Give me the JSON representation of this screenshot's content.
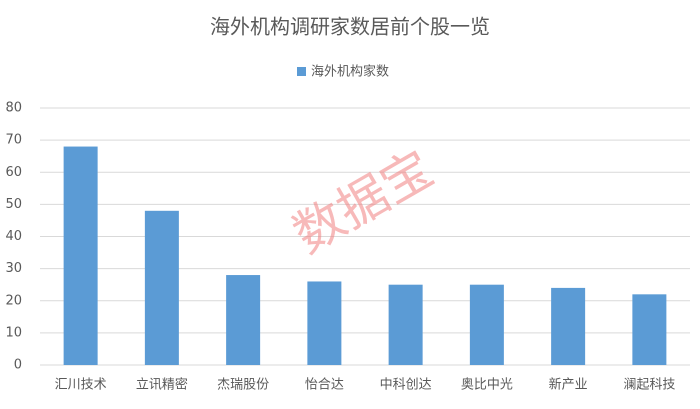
{
  "chart_data": {
    "type": "bar",
    "title": "海外机构调研家数居前个股一览",
    "watermark": "数据宝",
    "legend": "top",
    "series": [
      {
        "name": "海外机构家数",
        "color": "#5b9bd5",
        "values": [
          68,
          48,
          28,
          26,
          25,
          25,
          24,
          22
        ]
      }
    ],
    "categories": [
      "汇川技术",
      "立讯精密",
      "杰瑞股份",
      "怡合达",
      "中科创达",
      "奥比中光",
      "新产业",
      "澜起科技"
    ],
    "ylim": [
      0,
      80
    ],
    "yticks": [
      0,
      10,
      20,
      30,
      40,
      50,
      60,
      70,
      80
    ],
    "grid": true
  }
}
